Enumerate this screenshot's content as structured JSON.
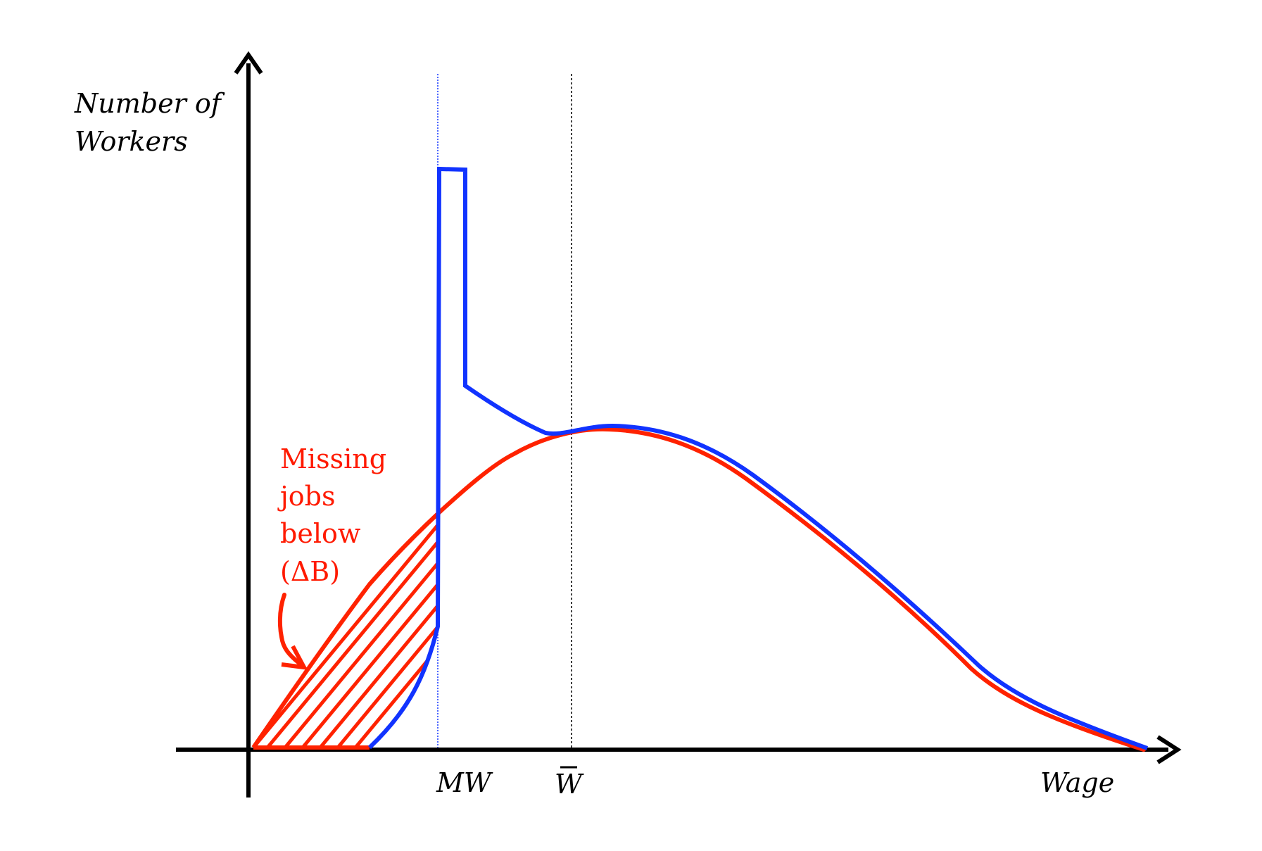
{
  "axes": {
    "y_label_line1": "Number of",
    "y_label_line2": "Workers",
    "x_label": "Wage"
  },
  "markers": {
    "minimum_wage": "MW",
    "mean_wage": "W"
  },
  "annotation": {
    "line1": "Missing",
    "line2": "jobs",
    "line3": "below",
    "line4": "(ΔB)"
  },
  "colors": {
    "axis": "#000000",
    "counterfactual_distribution": "#ff2200",
    "actual_distribution": "#1133ff",
    "annotation": "#ff1a00"
  }
}
